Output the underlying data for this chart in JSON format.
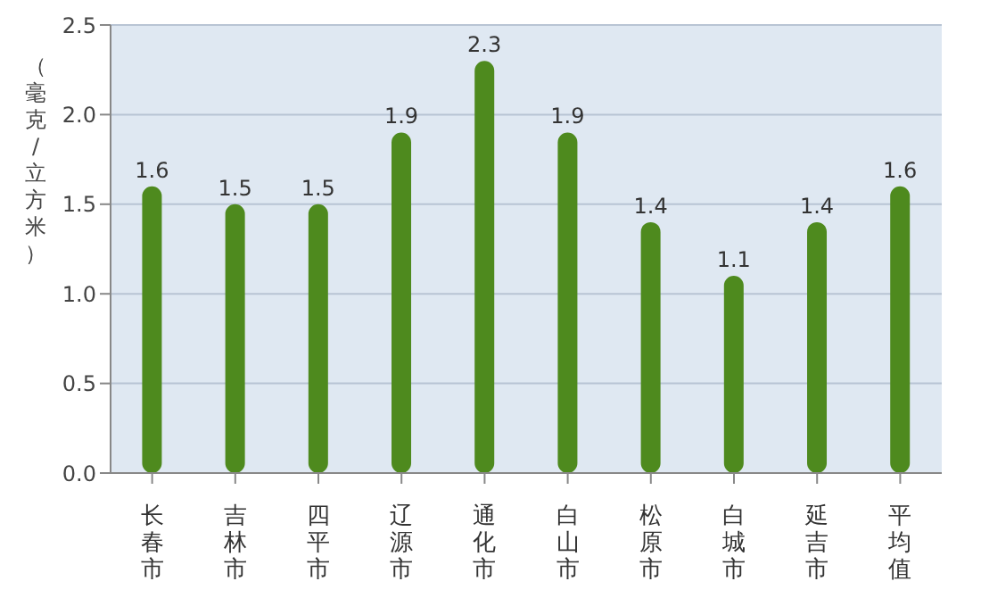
{
  "chart_data": {
    "type": "bar",
    "ylabel": "（毫克/立方米）",
    "categories": [
      "长春市",
      "吉林市",
      "四平市",
      "辽源市",
      "通化市",
      "白山市",
      "松原市",
      "白城市",
      "延吉市",
      "平均值"
    ],
    "values": [
      1.6,
      1.5,
      1.5,
      1.9,
      2.3,
      1.9,
      1.4,
      1.1,
      1.4,
      1.6
    ],
    "color": "#4e8a1e",
    "ylim": [
      0,
      2.5
    ],
    "yticks": [
      {
        "value": 0,
        "label": "0.0"
      },
      0.5,
      {
        "value": 1,
        "label": "1.0"
      },
      1.5,
      {
        "value": 2,
        "label": "2.0"
      },
      2.5
    ],
    "grid": "y",
    "data_labels": true
  }
}
